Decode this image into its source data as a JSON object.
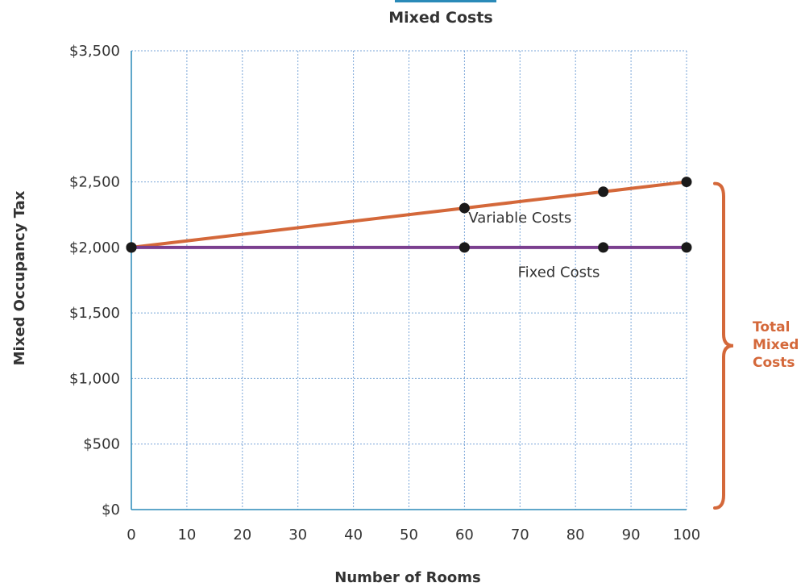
{
  "chart_data": {
    "type": "line",
    "title": "Mixed Costs",
    "xlabel": "Number of Rooms",
    "ylabel": "Mixed Occupancy Tax",
    "xlim": [
      0,
      100
    ],
    "ylim": [
      0,
      3500
    ],
    "x_ticks": [
      "0",
      "10",
      "20",
      "30",
      "40",
      "50",
      "60",
      "70",
      "80",
      "90",
      "100"
    ],
    "y_ticks": [
      "$0",
      "$500",
      "$1,000",
      "$1,500",
      "$2,000",
      "$2,500",
      "$3,500"
    ],
    "y_tick_values": [
      0,
      500,
      1000,
      1500,
      2000,
      2500,
      3500
    ],
    "grid": true,
    "series": [
      {
        "x": [
          0,
          60,
          85,
          100
        ],
        "y": [
          2000,
          2300,
          2425,
          2500
        ],
        "color": "#d4683a"
      },
      {
        "x": [
          0,
          60,
          85,
          100
        ],
        "y": [
          2000,
          2000,
          2000,
          2000
        ],
        "color": "#7b3f8f"
      }
    ],
    "annotations": [
      {
        "text": "Variable Costs",
        "x": 70,
        "y": 2190
      },
      {
        "text": "Fixed Costs",
        "x": 77,
        "y": 1775
      }
    ],
    "bracket": {
      "label_lines": [
        "Total",
        "Mixed",
        "Costs"
      ],
      "from": 0,
      "to": 2500,
      "color": "#d4683a"
    },
    "point_color": "#1a1a1a",
    "grid_color": "#7aa6d8",
    "axis_color": "#2a8ab8"
  }
}
